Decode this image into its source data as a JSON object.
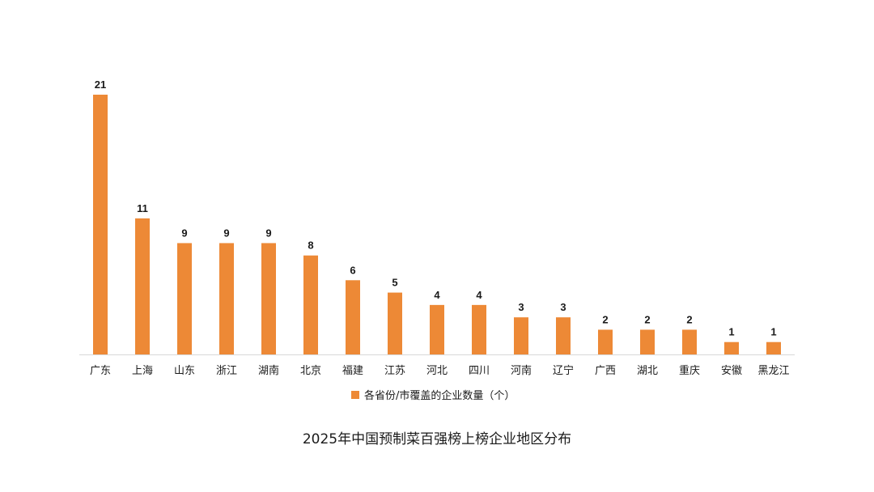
{
  "chart_data": {
    "type": "bar",
    "title": "2025年中国预制菜百强榜上榜企业地区分布",
    "categories": [
      "广东",
      "上海",
      "山东",
      "浙江",
      "湖南",
      "北京",
      "福建",
      "江苏",
      "河北",
      "四川",
      "河南",
      "辽宁",
      "广西",
      "湖北",
      "重庆",
      "安徽",
      "黑龙江"
    ],
    "series": [
      {
        "name": "各省份/市覆盖的企业数量（个）",
        "values": [
          21,
          11,
          9,
          9,
          9,
          8,
          6,
          5,
          4,
          4,
          3,
          3,
          2,
          2,
          2,
          1,
          1
        ],
        "color": "#ED8936"
      }
    ],
    "ylim": [
      0,
      21
    ],
    "grid": false,
    "legend_position": "bottom",
    "data_labels": true,
    "axis_line_color": "#d9d9d9"
  }
}
